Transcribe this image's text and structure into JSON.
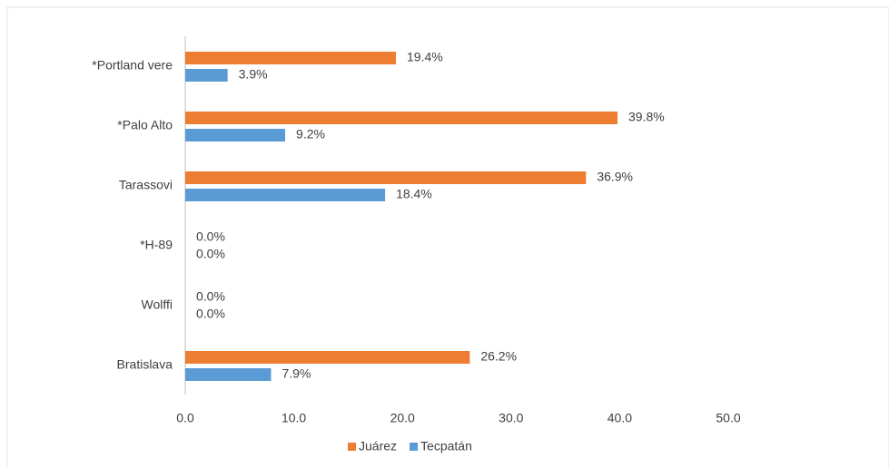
{
  "chart_data": {
    "type": "hbar",
    "categories": [
      "*Portland vere",
      "*Palo Alto",
      "Tarassovi",
      "*H-89",
      "Wolffi",
      "Bratislava"
    ],
    "series": [
      {
        "name": "Juárez",
        "color": "#ed7d31",
        "values": [
          19.4,
          39.8,
          36.9,
          0,
          0,
          26.2
        ],
        "value_labels": [
          "19.4%",
          "39.8%",
          "36.9%",
          "0.0%",
          "0.0%",
          "26.2%"
        ]
      },
      {
        "name": "Tecpatán",
        "color": "#5b9bd5",
        "values": [
          3.9,
          9.2,
          18.4,
          0,
          0,
          7.9
        ],
        "value_labels": [
          "3.9%",
          "9.2%",
          "18.4%",
          "0.0%",
          "0.0%",
          "7.9%"
        ]
      }
    ],
    "xlim": [
      0,
      50
    ],
    "xticks": [
      {
        "value": 0,
        "label": "0.0"
      },
      {
        "value": 10,
        "label": "10.0"
      },
      {
        "value": 20,
        "label": "20.0"
      },
      {
        "value": 30,
        "label": "30.0"
      },
      {
        "value": 40,
        "label": "40.0"
      },
      {
        "value": 50,
        "label": "50.0"
      }
    ],
    "legend": "bottom"
  }
}
